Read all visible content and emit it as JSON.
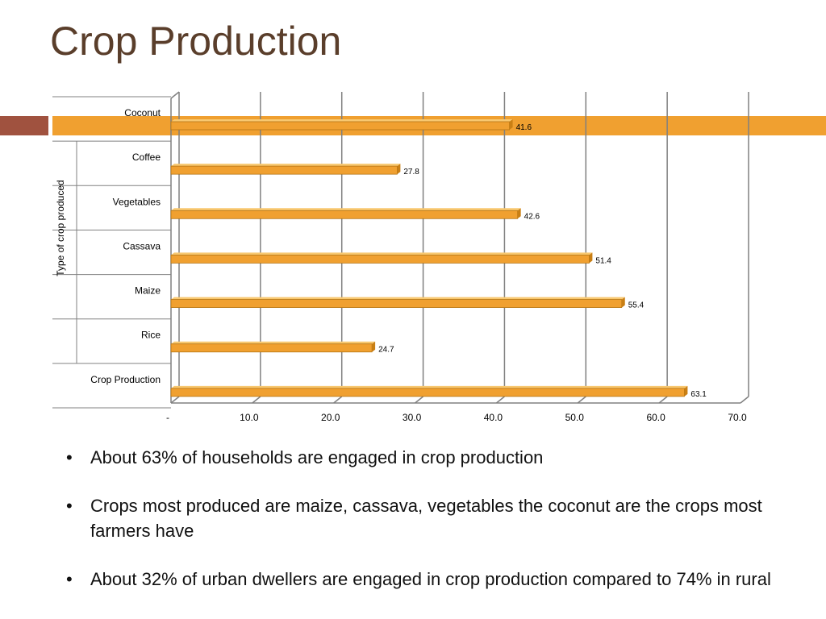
{
  "slide": {
    "title": "Crop Production",
    "accent_color": "#f0a030",
    "title_color": "#5a3e2b"
  },
  "chart_data": {
    "type": "bar",
    "orientation": "horizontal",
    "categories": [
      "Coconut",
      "Coffee",
      "Vegetables",
      "Cassava",
      "Maize",
      "Rice",
      "Crop Production"
    ],
    "values": [
      41.6,
      27.8,
      42.6,
      51.4,
      55.4,
      24.7,
      63.1
    ],
    "data_labels": [
      "41.6",
      "27.8",
      "42.6",
      "51.4",
      "55.4",
      "24.7",
      "63.1"
    ],
    "xticks": [
      "-",
      "10.0",
      "20.0",
      "30.0",
      "40.0",
      "50.0",
      "60.0",
      "70.0"
    ],
    "xlim": [
      0,
      70
    ],
    "ylabel": "Type of crop produced",
    "xlabel": "",
    "grid": true,
    "legend": "none",
    "bar_color": "#f0a030"
  },
  "bullets": [
    "About 63% of households are engaged in crop production",
    " Crops most produced are maize, cassava, vegetables the coconut are the crops most farmers have",
    "About 32% of urban dwellers are engaged in crop production compared to 74% in rural"
  ]
}
